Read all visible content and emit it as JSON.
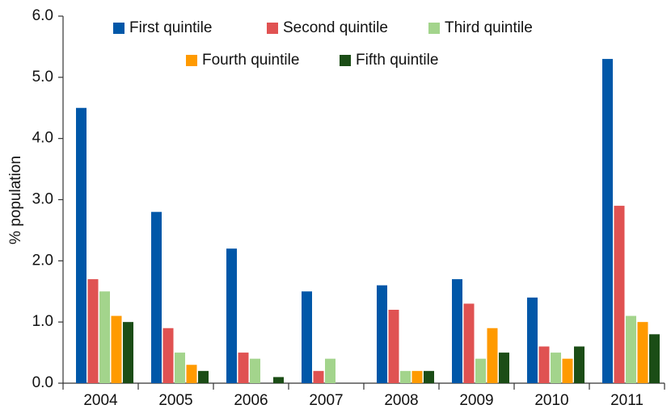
{
  "chart_data": {
    "type": "bar",
    "y_label": "% population",
    "categories": [
      "2004",
      "2005",
      "2006",
      "2007",
      "2008",
      "2009",
      "2010",
      "2011"
    ],
    "series": [
      {
        "name": "First quintile",
        "color": "#0057a8",
        "values": [
          4.5,
          2.8,
          2.2,
          1.5,
          1.6,
          1.7,
          1.4,
          5.3
        ]
      },
      {
        "name": "Second quintile",
        "color": "#e05252",
        "values": [
          1.7,
          0.9,
          0.5,
          0.2,
          1.2,
          1.3,
          0.6,
          2.9
        ]
      },
      {
        "name": "Third quintile",
        "color": "#a3d48c",
        "values": [
          1.5,
          0.5,
          0.4,
          0.4,
          0.2,
          0.4,
          0.5,
          1.1
        ]
      },
      {
        "name": "Fourth quintile",
        "color": "#ff9a00",
        "values": [
          1.1,
          0.3,
          0,
          0,
          0.2,
          0.9,
          0.4,
          1.0
        ]
      },
      {
        "name": "Fifth quintile",
        "color": "#1b4d16",
        "values": [
          1.0,
          0.2,
          0.1,
          0,
          0.2,
          0.5,
          0.6,
          0.8
        ]
      }
    ],
    "ylim": [
      0,
      6
    ],
    "yticks": [
      {
        "value": 0,
        "label": "0.0"
      },
      {
        "value": 1,
        "label": "1.0"
      },
      {
        "value": 2,
        "label": "2.0"
      },
      {
        "value": 3,
        "label": "3.0"
      },
      {
        "value": 4,
        "label": "4.0"
      },
      {
        "value": 5,
        "label": "5.0"
      },
      {
        "value": 6,
        "label": "6.0"
      }
    ],
    "grid": false,
    "legend": "top"
  }
}
